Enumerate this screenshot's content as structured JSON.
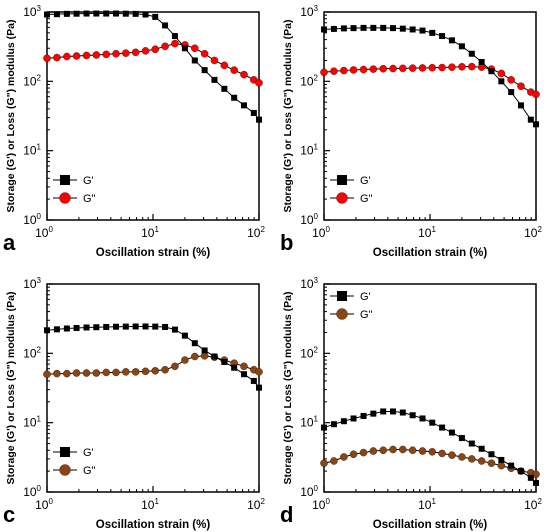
{
  "chart_data": [
    {
      "type": "line",
      "panel_label": "a",
      "xlabel": "Oscillation strain (%)",
      "ylabel": "Storage (G') or Loss (G\") modulus (Pa)",
      "xscale": "log",
      "yscale": "log",
      "xlim": [
        1,
        100
      ],
      "ylim": [
        1,
        1000
      ],
      "x_ticks": [
        "10^0",
        "10^1",
        "10^2"
      ],
      "y_ticks": [
        "10^0",
        "10^1",
        "10^2",
        "10^3"
      ],
      "legend": "bottom-left",
      "series": [
        {
          "name": "G'",
          "marker": "square",
          "color": "#000000",
          "x": [
            1.0,
            1.24,
            1.54,
            1.9,
            2.36,
            2.92,
            3.62,
            4.48,
            5.54,
            6.86,
            8.5,
            10.5,
            13.0,
            16.1,
            20.0,
            24.8,
            30.7,
            38.0,
            47.1,
            58.3,
            72.2,
            89.4,
            100.0
          ],
          "y": [
            920,
            930,
            940,
            945,
            950,
            950,
            950,
            950,
            945,
            940,
            920,
            850,
            640,
            450,
            300,
            200,
            145,
            105,
            78,
            58,
            45,
            35,
            28
          ]
        },
        {
          "name": "G\"",
          "marker": "circle",
          "color": "#ff0000",
          "x": [
            1.0,
            1.24,
            1.54,
            1.9,
            2.36,
            2.92,
            3.62,
            4.48,
            5.54,
            6.86,
            8.5,
            10.5,
            13.0,
            16.1,
            20.0,
            24.8,
            30.7,
            38.0,
            47.1,
            58.3,
            72.2,
            89.4,
            100.0
          ],
          "y": [
            215,
            220,
            228,
            232,
            236,
            240,
            245,
            250,
            255,
            262,
            275,
            290,
            320,
            350,
            335,
            300,
            250,
            200,
            170,
            145,
            125,
            105,
            95
          ]
        }
      ]
    },
    {
      "type": "line",
      "panel_label": "b",
      "xlabel": "Oscillation strain (%)",
      "ylabel": "Storage (G') or Loss (G\") modulus (Pa)",
      "xscale": "log",
      "yscale": "log",
      "xlim": [
        1,
        100
      ],
      "ylim": [
        1,
        1000
      ],
      "x_ticks": [
        "10^0",
        "10^1",
        "10^2"
      ],
      "y_ticks": [
        "10^0",
        "10^1",
        "10^2",
        "10^3"
      ],
      "legend": "bottom-left",
      "series": [
        {
          "name": "G'",
          "marker": "square",
          "color": "#000000",
          "x": [
            1.0,
            1.24,
            1.54,
            1.9,
            2.36,
            2.92,
            3.62,
            4.48,
            5.54,
            6.86,
            8.5,
            10.5,
            13.0,
            16.1,
            20.0,
            24.8,
            30.7,
            38.0,
            47.1,
            58.3,
            72.2,
            89.4,
            100.0
          ],
          "y": [
            560,
            570,
            580,
            585,
            590,
            590,
            590,
            585,
            575,
            560,
            540,
            500,
            450,
            390,
            320,
            250,
            190,
            140,
            100,
            70,
            45,
            28,
            24
          ]
        },
        {
          "name": "G\"",
          "marker": "circle",
          "color": "#ff0000",
          "x": [
            1.0,
            1.24,
            1.54,
            1.9,
            2.36,
            2.92,
            3.62,
            4.48,
            5.54,
            6.86,
            8.5,
            10.5,
            13.0,
            16.1,
            20.0,
            24.8,
            30.7,
            38.0,
            47.1,
            58.3,
            72.2,
            89.4,
            100.0
          ],
          "y": [
            135,
            140,
            143,
            146,
            148,
            150,
            152,
            153,
            154,
            155,
            156,
            157,
            158,
            160,
            162,
            163,
            160,
            150,
            130,
            105,
            85,
            70,
            65
          ]
        }
      ]
    },
    {
      "type": "line",
      "panel_label": "c",
      "xlabel": "Oscillation strain (%)",
      "ylabel": "Storage (G') or Loss (G\") modulus (Pa)",
      "xscale": "log",
      "yscale": "log",
      "xlim": [
        1,
        100
      ],
      "ylim": [
        1,
        1000
      ],
      "x_ticks": [
        "10^0",
        "10^1",
        "10^2"
      ],
      "y_ticks": [
        "10^0",
        "10^1",
        "10^2",
        "10^3"
      ],
      "legend": "bottom-left",
      "series": [
        {
          "name": "G'",
          "marker": "square",
          "color": "#000000",
          "x": [
            1.0,
            1.24,
            1.54,
            1.9,
            2.36,
            2.92,
            3.62,
            4.48,
            5.54,
            6.86,
            8.5,
            10.5,
            13.0,
            16.1,
            20.0,
            24.8,
            30.7,
            38.0,
            47.1,
            58.3,
            72.2,
            89.4,
            100.0
          ],
          "y": [
            215,
            222,
            228,
            232,
            236,
            238,
            240,
            242,
            243,
            244,
            244,
            243,
            240,
            220,
            180,
            140,
            110,
            90,
            75,
            62,
            50,
            40,
            32
          ]
        },
        {
          "name": "G\"",
          "marker": "circle",
          "color": "#8b4513",
          "x": [
            1.0,
            1.24,
            1.54,
            1.9,
            2.36,
            2.92,
            3.62,
            4.48,
            5.54,
            6.86,
            8.5,
            10.5,
            13.0,
            16.1,
            20.0,
            24.8,
            30.7,
            38.0,
            47.1,
            58.3,
            72.2,
            89.4,
            100.0
          ],
          "y": [
            50,
            51,
            51,
            52,
            52,
            52,
            53,
            53,
            54,
            54,
            55,
            56,
            58,
            65,
            80,
            90,
            92,
            88,
            80,
            72,
            65,
            58,
            54
          ]
        }
      ]
    },
    {
      "type": "line",
      "panel_label": "d",
      "xlabel": "Oscillation strain (%)",
      "ylabel": "Storage (G') or Loss (G\") modulus (Pa)",
      "xscale": "log",
      "yscale": "log",
      "xlim": [
        1,
        100
      ],
      "ylim": [
        1,
        1000
      ],
      "x_ticks": [
        "10^0",
        "10^1",
        "10^2"
      ],
      "y_ticks": [
        "10^0",
        "10^1",
        "10^2",
        "10^3"
      ],
      "legend": "top-left",
      "series": [
        {
          "name": "G'",
          "marker": "square",
          "color": "#000000",
          "x": [
            1.0,
            1.24,
            1.54,
            1.9,
            2.36,
            2.92,
            3.62,
            4.48,
            5.54,
            6.86,
            8.5,
            10.5,
            13.0,
            16.1,
            20.0,
            24.8,
            30.7,
            38.0,
            47.1,
            58.3,
            72.2,
            89.4,
            100.0
          ],
          "y": [
            8.5,
            9.5,
            10.5,
            11.5,
            12.5,
            13.5,
            14.5,
            14.5,
            14.0,
            12.8,
            11.5,
            10.0,
            8.5,
            7.2,
            6.0,
            5.0,
            4.2,
            3.5,
            2.9,
            2.4,
            2.0,
            1.6,
            1.35
          ]
        },
        {
          "name": "G\"",
          "marker": "circle",
          "color": "#8b4513",
          "x": [
            1.0,
            1.24,
            1.54,
            1.9,
            2.36,
            2.92,
            3.62,
            4.48,
            5.54,
            6.86,
            8.5,
            10.5,
            13.0,
            16.1,
            20.0,
            24.8,
            30.7,
            38.0,
            47.1,
            58.3,
            72.2,
            89.4,
            100.0
          ],
          "y": [
            2.6,
            2.8,
            3.2,
            3.5,
            3.7,
            3.9,
            4.0,
            4.1,
            4.1,
            4.0,
            3.9,
            3.8,
            3.6,
            3.4,
            3.2,
            3.0,
            2.8,
            2.6,
            2.4,
            2.2,
            2.0,
            1.9,
            1.8
          ]
        }
      ]
    }
  ]
}
